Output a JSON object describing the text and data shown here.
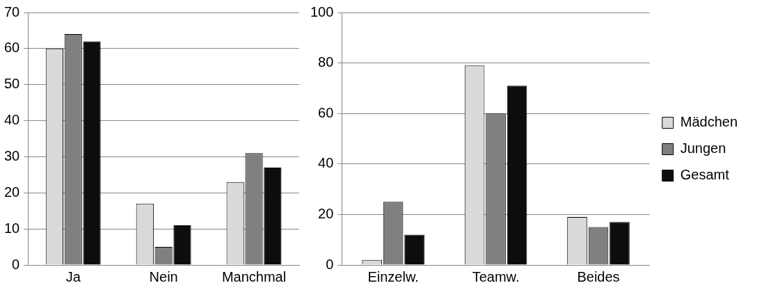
{
  "chart_data": [
    {
      "type": "bar",
      "categories": [
        "Ja",
        "Nein",
        "Manchmal"
      ],
      "series": [
        {
          "color": "#d9d9d9",
          "values": [
            60,
            17,
            23
          ]
        },
        {
          "color": "#808080",
          "values": [
            64,
            5,
            31
          ]
        },
        {
          "color": "#0d0d0d",
          "values": [
            62,
            11,
            27
          ]
        }
      ],
      "ylim": [
        0,
        70
      ],
      "yticks": [
        0,
        10,
        20,
        30,
        40,
        50,
        60,
        70
      ],
      "grid": "y",
      "legend": false
    },
    {
      "type": "bar",
      "categories": [
        "Einzelw.",
        "Teamw.",
        "Beides"
      ],
      "series": [
        {
          "name": "Mädchen",
          "color": "#d9d9d9",
          "values": [
            2,
            79,
            19
          ]
        },
        {
          "name": "Jungen",
          "color": "#808080",
          "values": [
            25,
            60,
            15
          ]
        },
        {
          "name": "Gesamt",
          "color": "#0d0d0d",
          "values": [
            12,
            71,
            17
          ]
        }
      ],
      "ylim": [
        0,
        100
      ],
      "yticks": [
        0,
        20,
        40,
        60,
        80,
        100
      ],
      "grid": "y",
      "legend": "right"
    }
  ]
}
